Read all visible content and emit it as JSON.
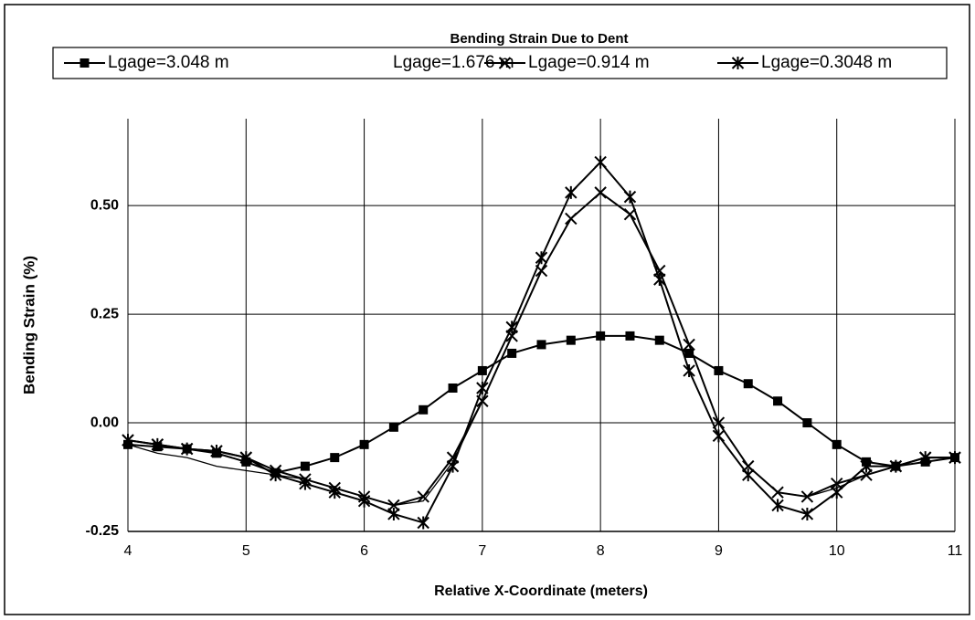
{
  "chart_data": {
    "type": "line",
    "title": "Bending Strain Due to Dent",
    "xlabel": "Relative X-Coordinate (meters)",
    "ylabel": "Bending Strain (%)",
    "x": [
      4,
      4.25,
      4.5,
      4.75,
      5,
      5.25,
      5.5,
      5.75,
      6,
      6.25,
      6.5,
      6.75,
      7,
      7.25,
      7.5,
      7.75,
      8,
      8.25,
      8.5,
      8.75,
      9,
      9.25,
      9.5,
      9.75,
      10,
      10.25,
      10.5,
      10.75,
      11
    ],
    "series": [
      {
        "name": "Lgage=3.048 m",
        "color": "#000000",
        "marker": "square",
        "values": [
          -0.05,
          -0.055,
          -0.06,
          -0.07,
          -0.09,
          -0.115,
          -0.1,
          -0.08,
          -0.05,
          -0.01,
          0.03,
          0.08,
          0.12,
          0.16,
          0.18,
          0.19,
          0.2,
          0.2,
          0.19,
          0.16,
          0.12,
          0.09,
          0.05,
          0.0,
          -0.05,
          -0.09,
          -0.1,
          -0.09,
          -0.08
        ]
      },
      {
        "name": "Lgage=1.676 m",
        "color": "#000000",
        "marker": "none",
        "values": [
          -0.05,
          -0.07,
          -0.08,
          -0.1,
          -0.11,
          -0.12,
          -0.13,
          -0.15,
          -0.17,
          -0.19,
          -0.18,
          -0.09,
          0.05,
          0.2,
          0.35,
          0.47,
          0.53,
          0.48,
          0.35,
          0.18,
          0.0,
          -0.1,
          -0.16,
          -0.17,
          -0.15,
          -0.12,
          -0.1,
          -0.09,
          -0.08
        ]
      },
      {
        "name": "Lgage=0.914 m",
        "color": "#000000",
        "marker": "x",
        "values": [
          -0.04,
          -0.05,
          -0.06,
          -0.065,
          -0.08,
          -0.11,
          -0.13,
          -0.15,
          -0.17,
          -0.19,
          -0.17,
          -0.08,
          0.05,
          0.2,
          0.35,
          0.47,
          0.53,
          0.48,
          0.35,
          0.18,
          0.0,
          -0.1,
          -0.16,
          -0.17,
          -0.14,
          -0.12,
          -0.1,
          -0.08,
          -0.08
        ]
      },
      {
        "name": "Lgage=0.3048 m",
        "color": "#000000",
        "marker": "asterisk",
        "values": [
          -0.04,
          -0.05,
          -0.06,
          -0.065,
          -0.08,
          -0.12,
          -0.14,
          -0.16,
          -0.18,
          -0.21,
          -0.23,
          -0.1,
          0.08,
          0.22,
          0.38,
          0.53,
          0.6,
          0.52,
          0.33,
          0.12,
          -0.03,
          -0.12,
          -0.19,
          -0.21,
          -0.16,
          -0.1,
          -0.1,
          -0.08,
          -0.08
        ]
      }
    ],
    "xlim": [
      4,
      11
    ],
    "xticks": [
      4,
      5,
      6,
      7,
      8,
      9,
      10,
      11
    ],
    "ylim": [
      -0.25,
      0.7
    ],
    "yticks": [
      -0.25,
      {
        "value": 0,
        "label": "0.00"
      },
      0.25,
      {
        "value": 0.5,
        "label": "0.50"
      }
    ],
    "grid": true,
    "legend": "top"
  }
}
